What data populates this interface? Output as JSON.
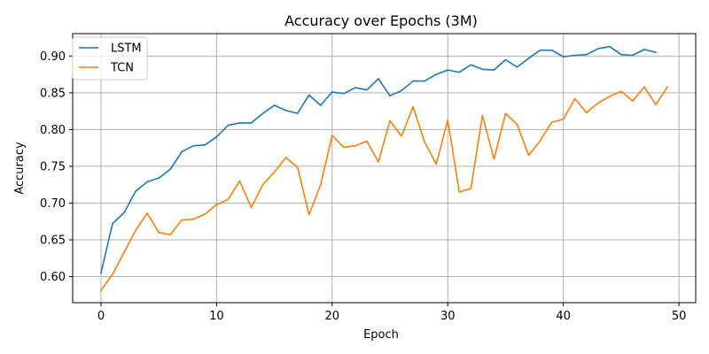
{
  "chart_data": {
    "type": "line",
    "title": "Accuracy over Epochs (3M)",
    "xlabel": "Epoch",
    "ylabel": "Accuracy",
    "xlim": [
      -2.45,
      51.45
    ],
    "ylim": [
      0.5645,
      0.9305
    ],
    "xticks": [
      0,
      10,
      20,
      30,
      40,
      50
    ],
    "yticks": [
      0.6,
      0.65,
      0.7,
      0.75,
      0.8,
      0.85,
      0.9
    ],
    "grid": true,
    "legend_position": "top-left",
    "series": [
      {
        "name": "LSTM",
        "color": "#1f77b4",
        "x": [
          0,
          1,
          2,
          3,
          4,
          5,
          6,
          7,
          8,
          9,
          10,
          11,
          12,
          13,
          14,
          15,
          16,
          17,
          18,
          19,
          20,
          21,
          22,
          23,
          24,
          25,
          26,
          27,
          28,
          29,
          30,
          31,
          32,
          33,
          34,
          35,
          36,
          37,
          38,
          39,
          40,
          41,
          42,
          43,
          44,
          45,
          46,
          47,
          48
        ],
        "values": [
          0.605,
          0.672,
          0.687,
          0.716,
          0.729,
          0.734,
          0.746,
          0.77,
          0.778,
          0.779,
          0.79,
          0.806,
          0.809,
          0.809,
          0.822,
          0.833,
          0.826,
          0.822,
          0.847,
          0.833,
          0.851,
          0.849,
          0.857,
          0.854,
          0.869,
          0.846,
          0.853,
          0.866,
          0.866,
          0.875,
          0.881,
          0.878,
          0.888,
          0.882,
          0.881,
          0.895,
          0.885,
          0.897,
          0.908,
          0.908,
          0.899,
          0.901,
          0.902,
          0.91,
          0.913,
          0.902,
          0.901,
          0.909,
          0.905
        ]
      },
      {
        "name": "TCN",
        "color": "#ff7f0e",
        "x": [
          0,
          1,
          2,
          3,
          4,
          5,
          6,
          7,
          8,
          9,
          10,
          11,
          12,
          13,
          14,
          15,
          16,
          17,
          18,
          19,
          20,
          21,
          22,
          23,
          24,
          25,
          26,
          27,
          28,
          29,
          30,
          31,
          32,
          33,
          34,
          35,
          36,
          37,
          38,
          39,
          40,
          41,
          42,
          43,
          44,
          45,
          46,
          47,
          48,
          49
        ],
        "values": [
          0.581,
          0.603,
          0.633,
          0.663,
          0.686,
          0.66,
          0.657,
          0.677,
          0.678,
          0.685,
          0.698,
          0.705,
          0.73,
          0.694,
          0.725,
          0.742,
          0.762,
          0.749,
          0.684,
          0.725,
          0.792,
          0.776,
          0.778,
          0.784,
          0.756,
          0.812,
          0.791,
          0.831,
          0.783,
          0.753,
          0.813,
          0.715,
          0.72,
          0.819,
          0.76,
          0.822,
          0.807,
          0.765,
          0.785,
          0.81,
          0.814,
          0.842,
          0.823,
          0.836,
          0.845,
          0.852,
          0.839,
          0.858,
          0.834,
          0.858
        ]
      }
    ]
  }
}
